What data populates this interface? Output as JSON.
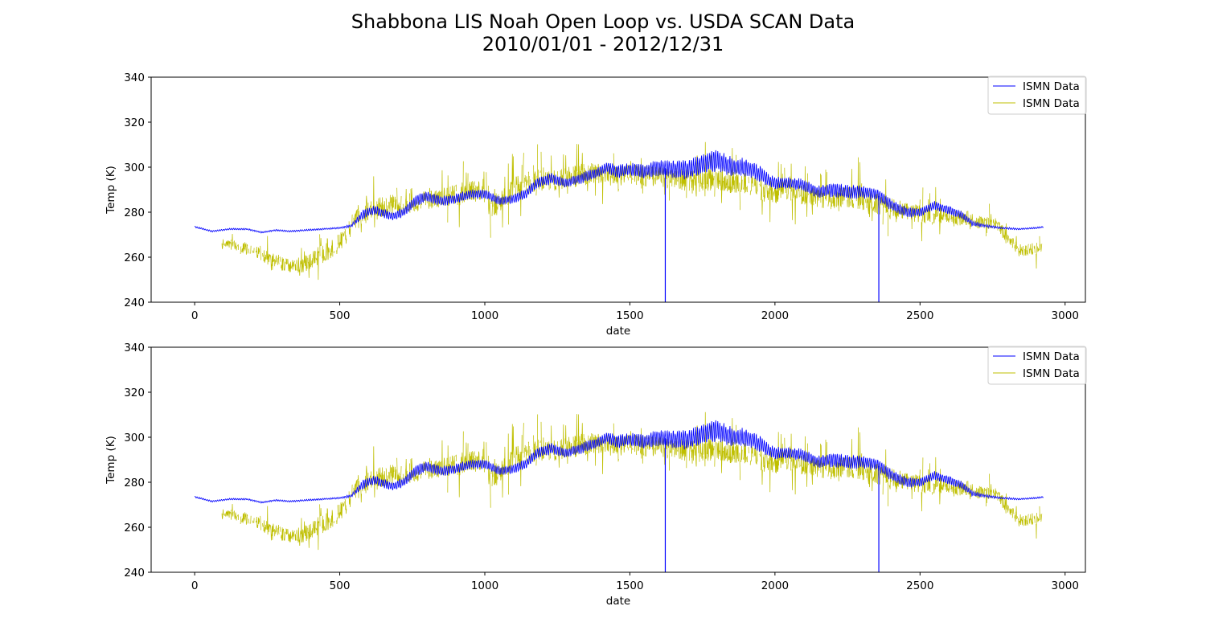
{
  "figure": {
    "title_line1": "Shabbona LIS Noah Open Loop vs. USDA SCAN Data",
    "title_line2": "2010/01/01 - 2012/12/31"
  },
  "chart_data": [
    {
      "type": "line",
      "xlabel": "date",
      "ylabel": "Temp (K)",
      "xlim": [
        -150,
        3070
      ],
      "ylim": [
        240,
        340
      ],
      "xticks": [
        0,
        500,
        1000,
        1500,
        2000,
        2500,
        3000
      ],
      "yticks": [
        240,
        260,
        280,
        300,
        320,
        340
      ],
      "grid": false,
      "legend_position": "top-right",
      "series": [
        {
          "name": "ISMN Data",
          "color": "#0000ff",
          "style": "dense-oscillating",
          "x": [
            0,
            60,
            120,
            180,
            230,
            280,
            330,
            380,
            440,
            500,
            540,
            580,
            620,
            680,
            720,
            760,
            800,
            850,
            900,
            950,
            1000,
            1050,
            1100,
            1140,
            1180,
            1230,
            1280,
            1330,
            1380,
            1420,
            1460,
            1500,
            1550,
            1600,
            1650,
            1700,
            1750,
            1800,
            1850,
            1900,
            1950,
            1980,
            2000,
            2050,
            2100,
            2150,
            2200,
            2250,
            2300,
            2350,
            2380,
            2420,
            2460,
            2500,
            2550,
            2600,
            2640,
            2680,
            2720,
            2780,
            2840,
            2900,
            2925
          ],
          "mean": [
            273.5,
            271.5,
            272.5,
            272.5,
            271,
            272,
            271.5,
            272,
            272.5,
            273,
            274,
            279,
            281,
            278,
            280,
            285,
            287,
            285,
            286,
            288,
            288,
            285,
            286,
            288,
            293,
            295,
            293,
            295,
            297,
            300,
            298,
            299,
            298,
            300,
            299,
            299,
            301,
            303,
            300,
            300,
            297,
            294,
            293,
            293,
            292,
            289,
            290,
            289,
            289,
            288,
            285,
            282,
            280,
            280,
            283,
            281,
            279,
            275,
            274,
            273,
            272.5,
            273,
            273.5
          ],
          "amp": [
            0.3,
            0.3,
            0.3,
            0.3,
            0.3,
            0.3,
            0.3,
            0.3,
            0.3,
            0.3,
            0.6,
            1.6,
            1.8,
            1.6,
            1.8,
            2.0,
            2.0,
            1.8,
            1.8,
            1.8,
            1.8,
            1.6,
            1.6,
            1.8,
            2.0,
            2.0,
            1.8,
            2.0,
            2.0,
            2.2,
            2.4,
            2.4,
            2.8,
            3.0,
            3.5,
            3.5,
            3.8,
            4.0,
            3.6,
            3.2,
            3.0,
            2.6,
            2.4,
            2.2,
            2.2,
            2.4,
            2.6,
            2.6,
            2.4,
            2.2,
            2.2,
            2.0,
            1.8,
            1.6,
            1.6,
            1.6,
            1.4,
            1.0,
            0.6,
            0.4,
            0.3,
            0.3,
            0.3
          ],
          "spikes": [
            {
              "x": 1622,
              "y": 240
            },
            {
              "x": 2358,
              "y": 240
            }
          ]
        },
        {
          "name": "ISMN Data",
          "color": "#bfbf00",
          "style": "intermittent-spiky",
          "x": [
            90,
            150,
            220,
            280,
            330,
            380,
            430,
            480,
            520,
            560,
            620,
            680,
            740,
            800,
            860,
            920,
            980,
            1020,
            1060,
            1100,
            1150,
            1200,
            1250,
            1300,
            1350,
            1400,
            1450,
            1500,
            1560,
            1620,
            1680,
            1740,
            1800,
            1860,
            1920,
            1980,
            2040,
            2100,
            2160,
            2220,
            2280,
            2340,
            2400,
            2460,
            2520,
            2600,
            2680,
            2760,
            2840,
            2920
          ],
          "mean": [
            266,
            265,
            262,
            258,
            256,
            257,
            261,
            264,
            270,
            279,
            281,
            283,
            284,
            285,
            287,
            288,
            290,
            283,
            285,
            290,
            293,
            295,
            294,
            296,
            297,
            297,
            296,
            297,
            296,
            296,
            294,
            293,
            295,
            293,
            292,
            288,
            290,
            288,
            286,
            287,
            287,
            284,
            282,
            280,
            279,
            278,
            276,
            275,
            263,
            264
          ],
          "spread": [
            5,
            6,
            6,
            7,
            7,
            8,
            9,
            9,
            10,
            11,
            11,
            11,
            10,
            10,
            10,
            11,
            11,
            12,
            12,
            12,
            12,
            12,
            11,
            11,
            11,
            10,
            10,
            10,
            11,
            11,
            12,
            12,
            12,
            11,
            11,
            11,
            11,
            11,
            11,
            12,
            12,
            11,
            10,
            9,
            9,
            7,
            6,
            6,
            6,
            6
          ]
        }
      ]
    },
    {
      "type": "line",
      "xlabel": "date",
      "ylabel": "Temp (K)",
      "xlim": [
        -150,
        3070
      ],
      "ylim": [
        240,
        340
      ],
      "xticks": [
        0,
        500,
        1000,
        1500,
        2000,
        2500,
        3000
      ],
      "yticks": [
        240,
        260,
        280,
        300,
        320,
        340
      ],
      "grid": false,
      "legend_position": "top-right",
      "series": [
        {
          "name": "ISMN Data",
          "color": "#0000ff",
          "style": "dense-oscillating",
          "x": [
            0,
            60,
            120,
            180,
            230,
            280,
            330,
            380,
            440,
            500,
            540,
            580,
            620,
            680,
            720,
            760,
            800,
            850,
            900,
            950,
            1000,
            1050,
            1100,
            1140,
            1180,
            1230,
            1280,
            1330,
            1380,
            1420,
            1460,
            1500,
            1550,
            1600,
            1650,
            1700,
            1750,
            1800,
            1850,
            1900,
            1950,
            1980,
            2000,
            2050,
            2100,
            2150,
            2200,
            2250,
            2300,
            2350,
            2380,
            2420,
            2460,
            2500,
            2550,
            2600,
            2640,
            2680,
            2720,
            2780,
            2840,
            2900,
            2925
          ],
          "mean": [
            273.5,
            271.5,
            272.5,
            272.5,
            271,
            272,
            271.5,
            272,
            272.5,
            273,
            274,
            279,
            281,
            278,
            280,
            285,
            287,
            285,
            286,
            288,
            288,
            285,
            286,
            288,
            293,
            295,
            293,
            295,
            297,
            300,
            298,
            299,
            298,
            300,
            299,
            299,
            301,
            303,
            300,
            300,
            297,
            294,
            293,
            293,
            292,
            289,
            290,
            289,
            289,
            288,
            285,
            282,
            280,
            280,
            283,
            281,
            279,
            275,
            274,
            273,
            272.5,
            273,
            273.5
          ],
          "amp": [
            0.3,
            0.3,
            0.3,
            0.3,
            0.3,
            0.3,
            0.3,
            0.3,
            0.3,
            0.3,
            0.6,
            1.6,
            1.8,
            1.6,
            1.8,
            2.0,
            2.0,
            1.8,
            1.8,
            1.8,
            1.8,
            1.6,
            1.6,
            1.8,
            2.0,
            2.0,
            1.8,
            2.0,
            2.0,
            2.2,
            2.4,
            2.4,
            2.8,
            3.0,
            3.5,
            3.5,
            3.8,
            4.0,
            3.6,
            3.2,
            3.0,
            2.6,
            2.4,
            2.2,
            2.2,
            2.4,
            2.6,
            2.6,
            2.4,
            2.2,
            2.2,
            2.0,
            1.8,
            1.6,
            1.6,
            1.6,
            1.4,
            1.0,
            0.6,
            0.4,
            0.3,
            0.3,
            0.3
          ],
          "spikes": [
            {
              "x": 1622,
              "y": 240
            },
            {
              "x": 2358,
              "y": 240
            }
          ]
        },
        {
          "name": "ISMN Data",
          "color": "#bfbf00",
          "style": "intermittent-spiky",
          "x": [
            90,
            150,
            220,
            280,
            330,
            380,
            430,
            480,
            520,
            560,
            620,
            680,
            740,
            800,
            860,
            920,
            980,
            1020,
            1060,
            1100,
            1150,
            1200,
            1250,
            1300,
            1350,
            1400,
            1450,
            1500,
            1560,
            1620,
            1680,
            1740,
            1800,
            1860,
            1920,
            1980,
            2040,
            2100,
            2160,
            2220,
            2280,
            2340,
            2400,
            2460,
            2520,
            2600,
            2680,
            2760,
            2840,
            2920
          ],
          "mean": [
            266,
            265,
            262,
            258,
            256,
            257,
            261,
            264,
            270,
            279,
            281,
            283,
            284,
            285,
            287,
            288,
            290,
            283,
            285,
            290,
            293,
            295,
            294,
            296,
            297,
            297,
            296,
            297,
            296,
            296,
            294,
            293,
            295,
            293,
            292,
            288,
            290,
            288,
            286,
            287,
            287,
            284,
            282,
            280,
            279,
            278,
            276,
            275,
            263,
            264
          ],
          "spread": [
            5,
            6,
            6,
            7,
            7,
            8,
            9,
            9,
            10,
            11,
            11,
            11,
            10,
            10,
            10,
            11,
            11,
            12,
            12,
            12,
            12,
            12,
            11,
            11,
            11,
            10,
            10,
            10,
            11,
            11,
            12,
            12,
            12,
            11,
            11,
            11,
            11,
            11,
            11,
            12,
            12,
            11,
            10,
            9,
            9,
            7,
            6,
            6,
            6,
            6
          ]
        }
      ]
    }
  ]
}
